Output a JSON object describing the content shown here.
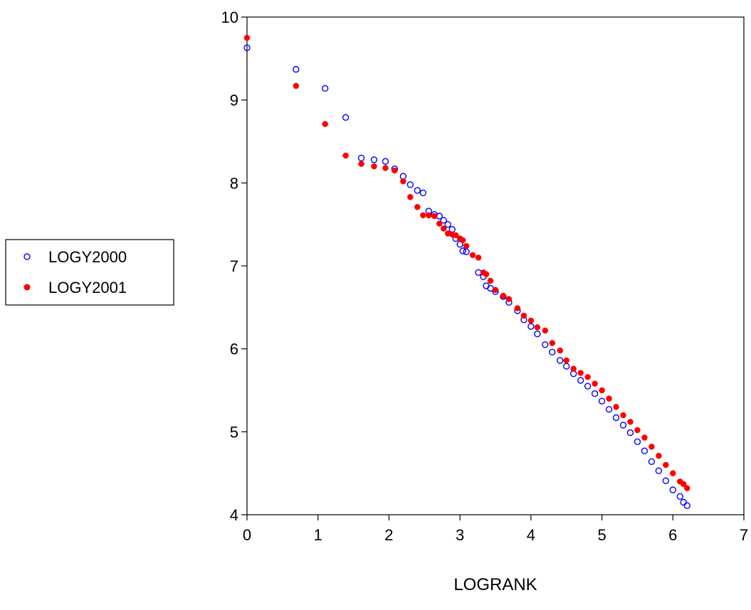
{
  "chart_data": {
    "type": "scatter",
    "xlabel": "LOGRANK",
    "ylabel": "",
    "xlim": [
      0,
      7
    ],
    "ylim": [
      4,
      10
    ],
    "xticks": [
      "0",
      "1",
      "2",
      "3",
      "4",
      "5",
      "6",
      "7"
    ],
    "yticks": [
      "4",
      "5",
      "6",
      "7",
      "8",
      "9",
      "10"
    ],
    "legend_position": "left",
    "grid": false,
    "series": [
      {
        "name": "LOGY2000",
        "color": "#0000ff",
        "marker": "hollow-circle",
        "points": [
          [
            0,
            9.63
          ],
          [
            0.69,
            9.37
          ],
          [
            1.1,
            9.14
          ],
          [
            1.39,
            8.79
          ],
          [
            1.61,
            8.3
          ],
          [
            1.79,
            8.28
          ],
          [
            1.95,
            8.26
          ],
          [
            2.08,
            8.17
          ],
          [
            2.2,
            8.08
          ],
          [
            2.3,
            7.98
          ],
          [
            2.4,
            7.91
          ],
          [
            2.48,
            7.88
          ],
          [
            2.56,
            7.66
          ],
          [
            2.64,
            7.62
          ],
          [
            2.71,
            7.6
          ],
          [
            2.77,
            7.55
          ],
          [
            2.83,
            7.5
          ],
          [
            2.89,
            7.44
          ],
          [
            2.94,
            7.33
          ],
          [
            3.0,
            7.26
          ],
          [
            3.04,
            7.18
          ],
          [
            3.09,
            7.17
          ],
          [
            3.26,
            6.92
          ],
          [
            3.33,
            6.87
          ],
          [
            3.37,
            6.76
          ],
          [
            3.43,
            6.73
          ],
          [
            3.5,
            6.69
          ],
          [
            3.61,
            6.63
          ],
          [
            3.69,
            6.56
          ],
          [
            3.81,
            6.46
          ],
          [
            3.9,
            6.35
          ],
          [
            4.0,
            6.27
          ],
          [
            4.09,
            6.18
          ],
          [
            4.2,
            6.05
          ],
          [
            4.3,
            5.96
          ],
          [
            4.41,
            5.86
          ],
          [
            4.5,
            5.79
          ],
          [
            4.6,
            5.7
          ],
          [
            4.7,
            5.62
          ],
          [
            4.8,
            5.55
          ],
          [
            4.9,
            5.46
          ],
          [
            5.0,
            5.37
          ],
          [
            5.1,
            5.27
          ],
          [
            5.2,
            5.17
          ],
          [
            5.3,
            5.08
          ],
          [
            5.4,
            4.99
          ],
          [
            5.5,
            4.88
          ],
          [
            5.6,
            4.77
          ],
          [
            5.7,
            4.64
          ],
          [
            5.8,
            4.53
          ],
          [
            5.9,
            4.41
          ],
          [
            6.0,
            4.3
          ],
          [
            6.1,
            4.22
          ],
          [
            6.15,
            4.15
          ],
          [
            6.2,
            4.11
          ]
        ]
      },
      {
        "name": "LOGY2001",
        "color": "#ff0000",
        "marker": "filled-circle",
        "points": [
          [
            0,
            9.75
          ],
          [
            0.69,
            9.17
          ],
          [
            1.1,
            8.71
          ],
          [
            1.39,
            8.33
          ],
          [
            1.61,
            8.23
          ],
          [
            1.79,
            8.2
          ],
          [
            1.95,
            8.18
          ],
          [
            2.08,
            8.15
          ],
          [
            2.2,
            8.02
          ],
          [
            2.3,
            7.83
          ],
          [
            2.4,
            7.71
          ],
          [
            2.48,
            7.61
          ],
          [
            2.56,
            7.61
          ],
          [
            2.64,
            7.6
          ],
          [
            2.71,
            7.51
          ],
          [
            2.77,
            7.45
          ],
          [
            2.83,
            7.39
          ],
          [
            2.89,
            7.38
          ],
          [
            2.94,
            7.37
          ],
          [
            3.0,
            7.33
          ],
          [
            3.04,
            7.31
          ],
          [
            3.09,
            7.24
          ],
          [
            3.18,
            7.13
          ],
          [
            3.26,
            7.1
          ],
          [
            3.33,
            6.92
          ],
          [
            3.37,
            6.9
          ],
          [
            3.43,
            6.82
          ],
          [
            3.5,
            6.71
          ],
          [
            3.61,
            6.64
          ],
          [
            3.69,
            6.6
          ],
          [
            3.81,
            6.49
          ],
          [
            3.9,
            6.4
          ],
          [
            4.0,
            6.34
          ],
          [
            4.09,
            6.26
          ],
          [
            4.2,
            6.22
          ],
          [
            4.3,
            6.07
          ],
          [
            4.41,
            5.98
          ],
          [
            4.5,
            5.86
          ],
          [
            4.6,
            5.76
          ],
          [
            4.7,
            5.71
          ],
          [
            4.8,
            5.66
          ],
          [
            4.9,
            5.58
          ],
          [
            5.0,
            5.5
          ],
          [
            5.1,
            5.4
          ],
          [
            5.2,
            5.3
          ],
          [
            5.3,
            5.2
          ],
          [
            5.4,
            5.12
          ],
          [
            5.5,
            5.02
          ],
          [
            5.6,
            4.93
          ],
          [
            5.7,
            4.82
          ],
          [
            5.8,
            4.71
          ],
          [
            5.9,
            4.6
          ],
          [
            6.0,
            4.5
          ],
          [
            6.1,
            4.4
          ],
          [
            6.15,
            4.37
          ],
          [
            6.2,
            4.32
          ]
        ]
      }
    ]
  }
}
